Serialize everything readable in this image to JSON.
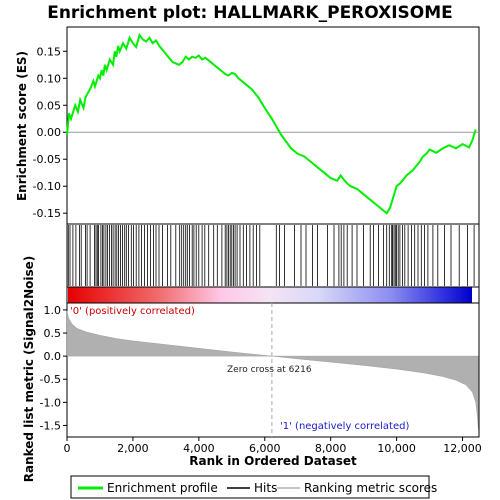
{
  "chart_data": {
    "type": "line",
    "title": "Enrichment plot: HALLMARK_PEROXISOME",
    "top_panel": {
      "ylabel": "Enrichment score (ES)",
      "ylim": [
        -0.17,
        0.195
      ],
      "yticks": [
        -0.15,
        -0.1,
        -0.05,
        0.0,
        0.05,
        0.1,
        0.15
      ],
      "ytick_labels": [
        "-0.15",
        "-0.10",
        "-0.05",
        "0.00",
        "0.05",
        "0.10",
        "0.15"
      ],
      "series": [
        {
          "name": "Enrichment profile",
          "color": "#00ee00",
          "x": [
            0,
            60,
            120,
            250,
            330,
            400,
            500,
            560,
            700,
            800,
            850,
            950,
            1000,
            1050,
            1100,
            1150,
            1200,
            1300,
            1400,
            1450,
            1500,
            1550,
            1600,
            1700,
            1800,
            1900,
            2000,
            2100,
            2200,
            2300,
            2400,
            2500,
            2600,
            2700,
            2800,
            3000,
            3200,
            3400,
            3500,
            3600,
            3700,
            3800,
            3900,
            4000,
            4100,
            4200,
            4400,
            4600,
            4800,
            4900,
            5000,
            5100,
            5200,
            5400,
            5600,
            5800,
            6000,
            6216,
            6500,
            6800,
            7000,
            7200,
            7400,
            7600,
            7800,
            8000,
            8200,
            8300,
            8400,
            8500,
            8600,
            8800,
            9000,
            9200,
            9400,
            9600,
            9700,
            9800,
            9850,
            9900,
            9950,
            10000,
            10100,
            10200,
            10300,
            10400,
            10500,
            10600,
            10700,
            10800,
            10900,
            11000,
            11200,
            11400,
            11600,
            11800,
            12000,
            12200,
            12300,
            12400
          ],
          "y": [
            -0.005,
            0.035,
            0.025,
            0.05,
            0.038,
            0.06,
            0.045,
            0.065,
            0.08,
            0.095,
            0.085,
            0.105,
            0.1,
            0.115,
            0.105,
            0.125,
            0.115,
            0.135,
            0.125,
            0.15,
            0.14,
            0.16,
            0.15,
            0.165,
            0.155,
            0.175,
            0.165,
            0.158,
            0.18,
            0.172,
            0.168,
            0.175,
            0.165,
            0.17,
            0.16,
            0.145,
            0.13,
            0.125,
            0.13,
            0.14,
            0.135,
            0.14,
            0.138,
            0.142,
            0.135,
            0.138,
            0.128,
            0.118,
            0.108,
            0.105,
            0.11,
            0.108,
            0.1,
            0.09,
            0.08,
            0.065,
            0.045,
            0.025,
            -0.005,
            -0.03,
            -0.04,
            -0.045,
            -0.055,
            -0.065,
            -0.075,
            -0.085,
            -0.09,
            -0.08,
            -0.088,
            -0.095,
            -0.1,
            -0.105,
            -0.115,
            -0.125,
            -0.135,
            -0.145,
            -0.15,
            -0.14,
            -0.13,
            -0.12,
            -0.11,
            -0.1,
            -0.095,
            -0.088,
            -0.08,
            -0.075,
            -0.07,
            -0.062,
            -0.055,
            -0.045,
            -0.04,
            -0.032,
            -0.038,
            -0.03,
            -0.024,
            -0.03,
            -0.022,
            -0.028,
            -0.015,
            0.005
          ]
        }
      ]
    },
    "hits": {
      "name": "Hits",
      "positions": [
        40,
        90,
        180,
        270,
        380,
        430,
        560,
        610,
        700,
        830,
        880,
        920,
        960,
        1030,
        1080,
        1120,
        1180,
        1230,
        1290,
        1350,
        1400,
        1460,
        1510,
        1560,
        1620,
        1680,
        1750,
        1800,
        1870,
        1950,
        2020,
        2100,
        2180,
        2260,
        2350,
        2440,
        2530,
        2620,
        2700,
        2790,
        2900,
        3050,
        3150,
        3300,
        3420,
        3480,
        3540,
        3600,
        3650,
        3720,
        3800,
        3850,
        3920,
        4000,
        4100,
        4180,
        4300,
        4450,
        4560,
        4700,
        4800,
        4850,
        4900,
        4950,
        5000,
        5050,
        5100,
        5160,
        5250,
        5350,
        5450,
        5550,
        5650,
        5750,
        5850,
        6350,
        6450,
        6600,
        6900,
        7100,
        7250,
        7450,
        7600,
        7900,
        8100,
        8250,
        8320,
        8400,
        8500,
        8650,
        8800,
        9000,
        9200,
        9300,
        9450,
        9600,
        9700,
        9780,
        9850,
        9880,
        9920,
        9960,
        10000,
        10050,
        10100,
        10180,
        10250,
        10350,
        10450,
        10550,
        10650,
        10750,
        10850,
        10950,
        11100,
        11250,
        11450,
        11650,
        11900,
        12150,
        12350
      ]
    },
    "bottom_panel": {
      "ylabel": "Ranked list metric (Signal2Noise)",
      "ylim": [
        -1.75,
        1.15
      ],
      "yticks": [
        -1.5,
        -1.0,
        -0.5,
        0.0,
        0.5,
        1.0
      ],
      "ytick_labels": [
        "-1.5",
        "-1.0",
        "-0.5",
        "0.0",
        "0.5",
        "1.0"
      ],
      "series": [
        {
          "name": "Ranking metric scores",
          "color": "#b0b0b0",
          "x": [
            0,
            50,
            150,
            300,
            600,
            1000,
            1500,
            2000,
            3000,
            4000,
            5000,
            6216,
            7000,
            8000,
            9000,
            10000,
            10800,
            11400,
            11800,
            12100,
            12300,
            12400,
            12450,
            12480
          ],
          "y": [
            0.98,
            0.82,
            0.7,
            0.6,
            0.52,
            0.45,
            0.38,
            0.33,
            0.25,
            0.17,
            0.09,
            0.0,
            -0.06,
            -0.13,
            -0.2,
            -0.28,
            -0.36,
            -0.44,
            -0.52,
            -0.62,
            -0.78,
            -1.0,
            -1.3,
            -1.58
          ]
        }
      ],
      "annotations": {
        "positive": "'0' (positively correlated)",
        "negative": "'1' (negatively correlated)",
        "zero_cross": "Zero cross at 6216"
      }
    },
    "xlabel": "Rank in Ordered Dataset",
    "xlim": [
      0,
      12500
    ],
    "xticks": [
      0,
      2000,
      4000,
      6000,
      8000,
      10000,
      12000
    ],
    "xtick_labels": [
      "0",
      "2,000",
      "4,000",
      "6,000",
      "8,000",
      "10,000",
      "12,000"
    ],
    "ranking_bar_total": 12450,
    "legend": {
      "placement": "bottom",
      "entries": [
        "Enrichment profile",
        "Hits",
        "Ranking metric scores"
      ]
    }
  }
}
